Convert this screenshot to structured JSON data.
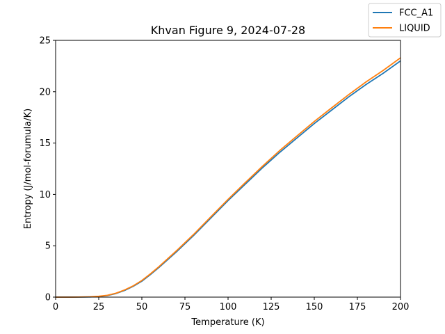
{
  "chart_data": {
    "type": "line",
    "title": "Khvan Figure 9, 2024-07-28",
    "xlabel": "Temperature (K)",
    "ylabel": "Entropy (J/mol-forumula/K)",
    "xlim": [
      0,
      200
    ],
    "ylim": [
      0,
      25
    ],
    "xticks": [
      0,
      25,
      50,
      75,
      100,
      125,
      150,
      175,
      200
    ],
    "yticks": [
      0,
      5,
      10,
      15,
      20,
      25
    ],
    "grid": false,
    "legend_position": "top-right (outside axes)",
    "x": [
      0,
      10,
      20,
      25,
      30,
      35,
      40,
      45,
      50,
      55,
      60,
      70,
      80,
      90,
      100,
      110,
      120,
      130,
      140,
      150,
      160,
      170,
      180,
      190,
      200
    ],
    "series": [
      {
        "name": "FCC_A1",
        "color": "#1f77b4",
        "values": [
          0,
          0,
          0.02,
          0.06,
          0.15,
          0.35,
          0.65,
          1.05,
          1.55,
          2.2,
          2.9,
          4.4,
          6.0,
          7.7,
          9.4,
          11.0,
          12.6,
          14.1,
          15.5,
          16.9,
          18.2,
          19.5,
          20.7,
          21.8,
          23.0
        ]
      },
      {
        "name": "LIQUID",
        "color": "#ff7f0e",
        "values": [
          0,
          0,
          0.03,
          0.08,
          0.18,
          0.38,
          0.7,
          1.1,
          1.62,
          2.27,
          2.98,
          4.5,
          6.1,
          7.82,
          9.52,
          11.15,
          12.75,
          14.28,
          15.7,
          17.1,
          18.42,
          19.72,
          20.95,
          22.08,
          23.3
        ]
      }
    ]
  }
}
